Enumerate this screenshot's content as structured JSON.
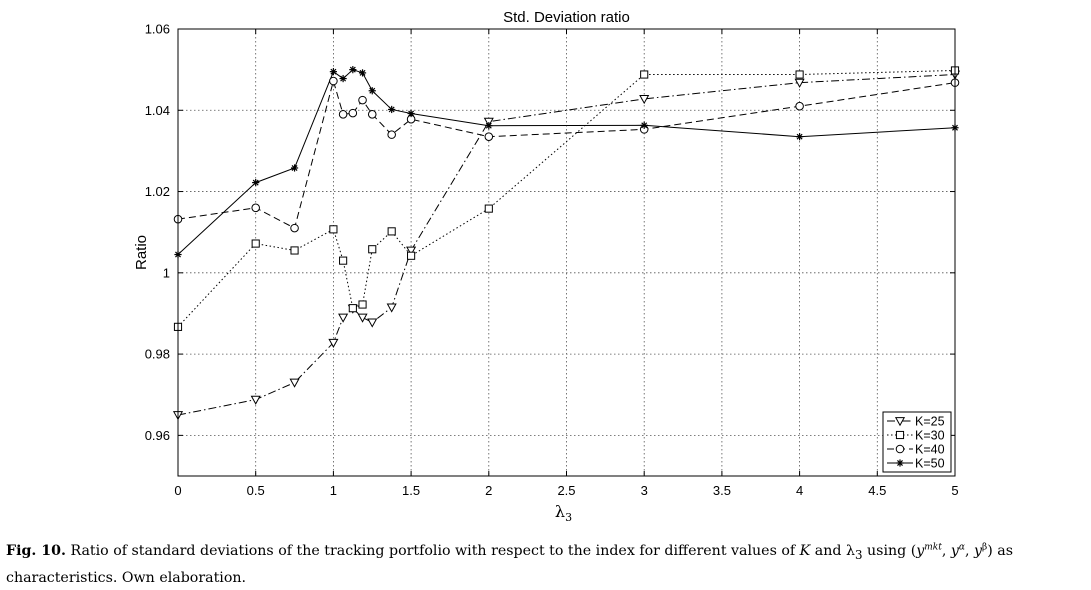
{
  "chart_data": {
    "type": "line",
    "title": "Std. Deviation ratio",
    "xlabel": "λ3",
    "ylabel": "Ratio",
    "xlim": [
      0,
      5
    ],
    "ylim": [
      0.95,
      1.06
    ],
    "x_ticks": [
      "0",
      "0.5",
      "1",
      "1.5",
      "2",
      "2.5",
      "3",
      "3.5",
      "4",
      "4.5",
      "5"
    ],
    "y_ticks": [
      "0.96",
      "0.98",
      "1",
      "1.02",
      "1.04",
      "1.06"
    ],
    "grid": true,
    "legend_position": "bottom-right",
    "series": [
      {
        "name": "K=25",
        "marker": "triangle-down",
        "dash": "dashdot",
        "x": [
          0,
          0.5,
          0.75,
          1,
          1.0625,
          1.125,
          1.1875,
          1.25,
          1.375,
          1.5,
          2,
          3,
          4,
          5
        ],
        "y": [
          0.965,
          0.9688,
          0.973,
          0.9828,
          0.989,
          0.9912,
          0.989,
          0.9878,
          0.9915,
          1.0055,
          1.0372,
          1.0428,
          1.0468,
          1.0488
        ]
      },
      {
        "name": "K=30",
        "marker": "square",
        "dash": "dotted",
        "x": [
          0,
          0.5,
          0.75,
          1,
          1.0625,
          1.125,
          1.1875,
          1.25,
          1.375,
          1.5,
          2,
          3,
          4,
          5
        ],
        "y": [
          0.9867,
          1.0072,
          1.0055,
          1.0107,
          1.003,
          0.9913,
          0.9922,
          1.0058,
          1.0102,
          1.0042,
          1.0158,
          1.0488,
          1.0488,
          1.0498
        ]
      },
      {
        "name": "K=40",
        "marker": "circle",
        "dash": "dashed",
        "x": [
          0,
          0.5,
          0.75,
          1,
          1.0625,
          1.125,
          1.1875,
          1.25,
          1.375,
          1.5,
          2,
          3,
          4,
          5
        ],
        "y": [
          1.0132,
          1.016,
          1.011,
          1.0472,
          1.039,
          1.0393,
          1.0425,
          1.039,
          1.034,
          1.0378,
          1.0335,
          1.0353,
          1.041,
          1.0468
        ]
      },
      {
        "name": "K=50",
        "marker": "star",
        "dash": "solid",
        "x": [
          0,
          0.5,
          0.75,
          1,
          1.0625,
          1.125,
          1.1875,
          1.25,
          1.375,
          1.5,
          2,
          3,
          4,
          5
        ],
        "y": [
          1.0045,
          1.0222,
          1.0258,
          1.0495,
          1.0478,
          1.05,
          1.0492,
          1.0448,
          1.0402,
          1.0392,
          1.0362,
          1.0363,
          1.0335,
          1.0357
        ]
      }
    ]
  },
  "caption": {
    "label": "Fig. 10.",
    "text_before": "Ratio of standard deviations of the tracking portfolio with respect to the index for different values of ",
    "var_k": "K",
    "and": " and ",
    "lambda": "λ",
    "lambda_sub": "3",
    "using": " using (",
    "y1": "y",
    "y1_sup": "mkt",
    "sep1": ", ",
    "y2": "y",
    "y2_sup": "α",
    "sep2": ", ",
    "y3": "y",
    "y3_sup": "β",
    "text_after": ") as characteristics. Own elaboration."
  }
}
